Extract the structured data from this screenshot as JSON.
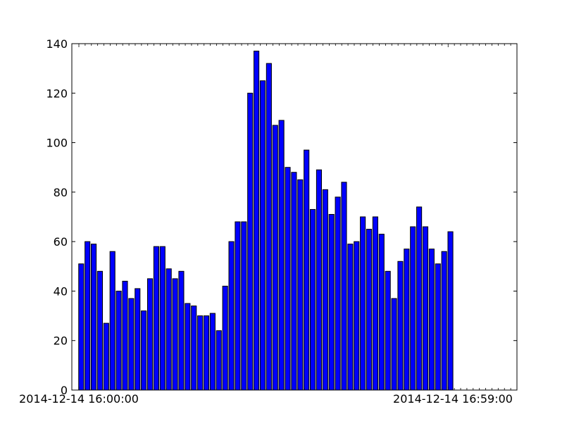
{
  "chart_data": {
    "type": "bar",
    "x_tick_labels": [
      "2014-12-14 16:00:00",
      "2014-12-14 16:59:00"
    ],
    "x_first_minute": "2014-12-14 16:00:00",
    "x_last_minute": "2014-12-14 16:59:00",
    "values": [
      51,
      60,
      59,
      48,
      27,
      56,
      40,
      44,
      37,
      41,
      32,
      45,
      58,
      58,
      49,
      45,
      48,
      35,
      34,
      30,
      30,
      31,
      24,
      42,
      60,
      68,
      68,
      120,
      137,
      125,
      132,
      107,
      109,
      90,
      88,
      85,
      97,
      73,
      89,
      81,
      71,
      78,
      84,
      59,
      60,
      70,
      65,
      70,
      63,
      48,
      37,
      52,
      57,
      66,
      74,
      66,
      57,
      51,
      56,
      64
    ],
    "ylim": [
      0,
      140
    ],
    "y_ticks": [
      0,
      20,
      40,
      60,
      80,
      100,
      120,
      140
    ],
    "grid": false,
    "bar_color": "#0000ff",
    "title": "",
    "xlabel": "",
    "ylabel": ""
  }
}
